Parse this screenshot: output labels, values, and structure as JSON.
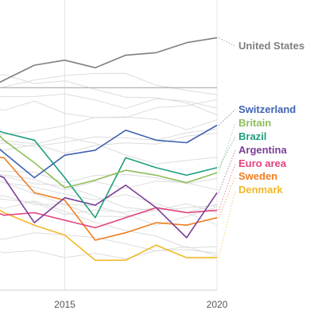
{
  "chart_data": {
    "type": "line",
    "x_ticks": [
      "2015",
      "2020"
    ],
    "xlim": [
      2010,
      2020
    ],
    "ylim": [
      -7.5,
      2.2
    ],
    "reference_line": 0.6,
    "grid": "vertical",
    "background_series_count": 18,
    "highlighted": [
      {
        "name": "United States",
        "color": "#7f7f7f",
        "x": [
          2010,
          2011,
          2012,
          2013,
          2014,
          2015,
          2016,
          2017,
          2018,
          2019,
          2020
        ],
        "y": [
          -0.5,
          -0.1,
          0.3,
          0.9,
          1.5,
          1.7,
          1.4,
          1.9,
          2.0,
          2.4,
          2.6
        ]
      },
      {
        "name": "Switzerland",
        "color": "#3f63b1",
        "x": [
          2010,
          2011,
          2012,
          2013,
          2014,
          2015,
          2016,
          2017,
          2018,
          2019,
          2020
        ],
        "y": [
          -1.1,
          -0.7,
          -1.0,
          -2.0,
          -3.0,
          -2.1,
          -1.9,
          -1.1,
          -1.5,
          -1.6,
          -0.9
        ]
      },
      {
        "name": "Britain",
        "color": "#8fbd5a",
        "x": [
          2010,
          2011,
          2012,
          2013,
          2014,
          2015,
          2016,
          2017,
          2018,
          2019,
          2020
        ],
        "y": [
          -0.8,
          -0.5,
          -0.2,
          -1.5,
          -2.4,
          -3.4,
          -3.1,
          -2.7,
          -2.9,
          -3.2,
          -2.8
        ]
      },
      {
        "name": "Brazil",
        "color": "#1e9e7e",
        "x": [
          2010,
          2011,
          2012,
          2013,
          2014,
          2015,
          2016,
          2017,
          2018,
          2019,
          2020
        ],
        "y": [
          -0.1,
          -0.6,
          -0.8,
          -1.2,
          -1.5,
          -3.0,
          -4.6,
          -2.2,
          -2.6,
          -2.9,
          -2.6
        ]
      },
      {
        "name": "Argentina",
        "color": "#7b3f98",
        "x": [
          2010,
          2011,
          2012,
          2013,
          2014,
          2015,
          2016,
          2017,
          2018,
          2019,
          2020
        ],
        "y": [
          -1.4,
          -2.1,
          -2.5,
          -3.0,
          -4.8,
          -3.8,
          -4.1,
          -3.3,
          -4.2,
          -5.4,
          -3.6
        ]
      },
      {
        "name": "Euro area",
        "color": "#e2427f",
        "x": [
          2010,
          2011,
          2012,
          2013,
          2014,
          2015,
          2016,
          2017,
          2018,
          2019,
          2020
        ],
        "y": [
          -3.6,
          -3.9,
          -4.0,
          -4.5,
          -4.4,
          -4.7,
          -5.0,
          -4.6,
          -4.2,
          -4.4,
          -4.3
        ]
      },
      {
        "name": "Sweden",
        "color": "#f07d1f",
        "x": [
          2010,
          2011,
          2012,
          2013,
          2014,
          2015,
          2016,
          2017,
          2018,
          2019,
          2020
        ],
        "y": [
          -1.6,
          -2.4,
          -2.1,
          -2.2,
          -3.6,
          -3.9,
          -5.5,
          -5.2,
          -4.8,
          -4.9,
          -4.6
        ]
      },
      {
        "name": "Denmark",
        "color": "#f2b829",
        "x": [
          2010,
          2011,
          2012,
          2013,
          2014,
          2015,
          2016,
          2017,
          2018,
          2019,
          2020
        ],
        "y": [
          -2.8,
          -3.4,
          -3.7,
          -4.4,
          -4.9,
          -5.3,
          -6.3,
          -6.3,
          -5.7,
          -6.2,
          -6.2
        ]
      }
    ]
  }
}
